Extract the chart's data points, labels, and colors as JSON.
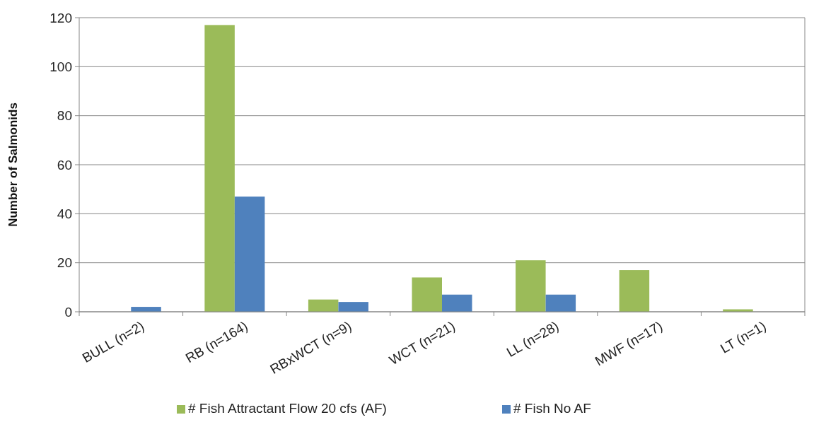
{
  "chart_data": {
    "type": "bar",
    "ylabel": "Number of Salmonids",
    "categories": [
      "BULL (n=2)",
      "RB (n=164)",
      "RBxWCT (n=9)",
      "WCT (n=21)",
      "LL (n=28)",
      "MWF (n=17)",
      "LT (n=1)"
    ],
    "series": [
      {
        "name": "# Fish Attractant Flow 20 cfs (AF)",
        "color": "#9bbb59",
        "values": [
          0,
          117,
          5,
          14,
          21,
          17,
          1
        ]
      },
      {
        "name": "# Fish No AF",
        "color": "#4f81bd",
        "values": [
          2,
          47,
          4,
          7,
          7,
          0,
          0
        ]
      }
    ],
    "ylim": [
      0,
      120
    ],
    "yticks": [
      0,
      20,
      40,
      60,
      80,
      100,
      120
    ],
    "grid": "y",
    "legend": "bottom"
  }
}
